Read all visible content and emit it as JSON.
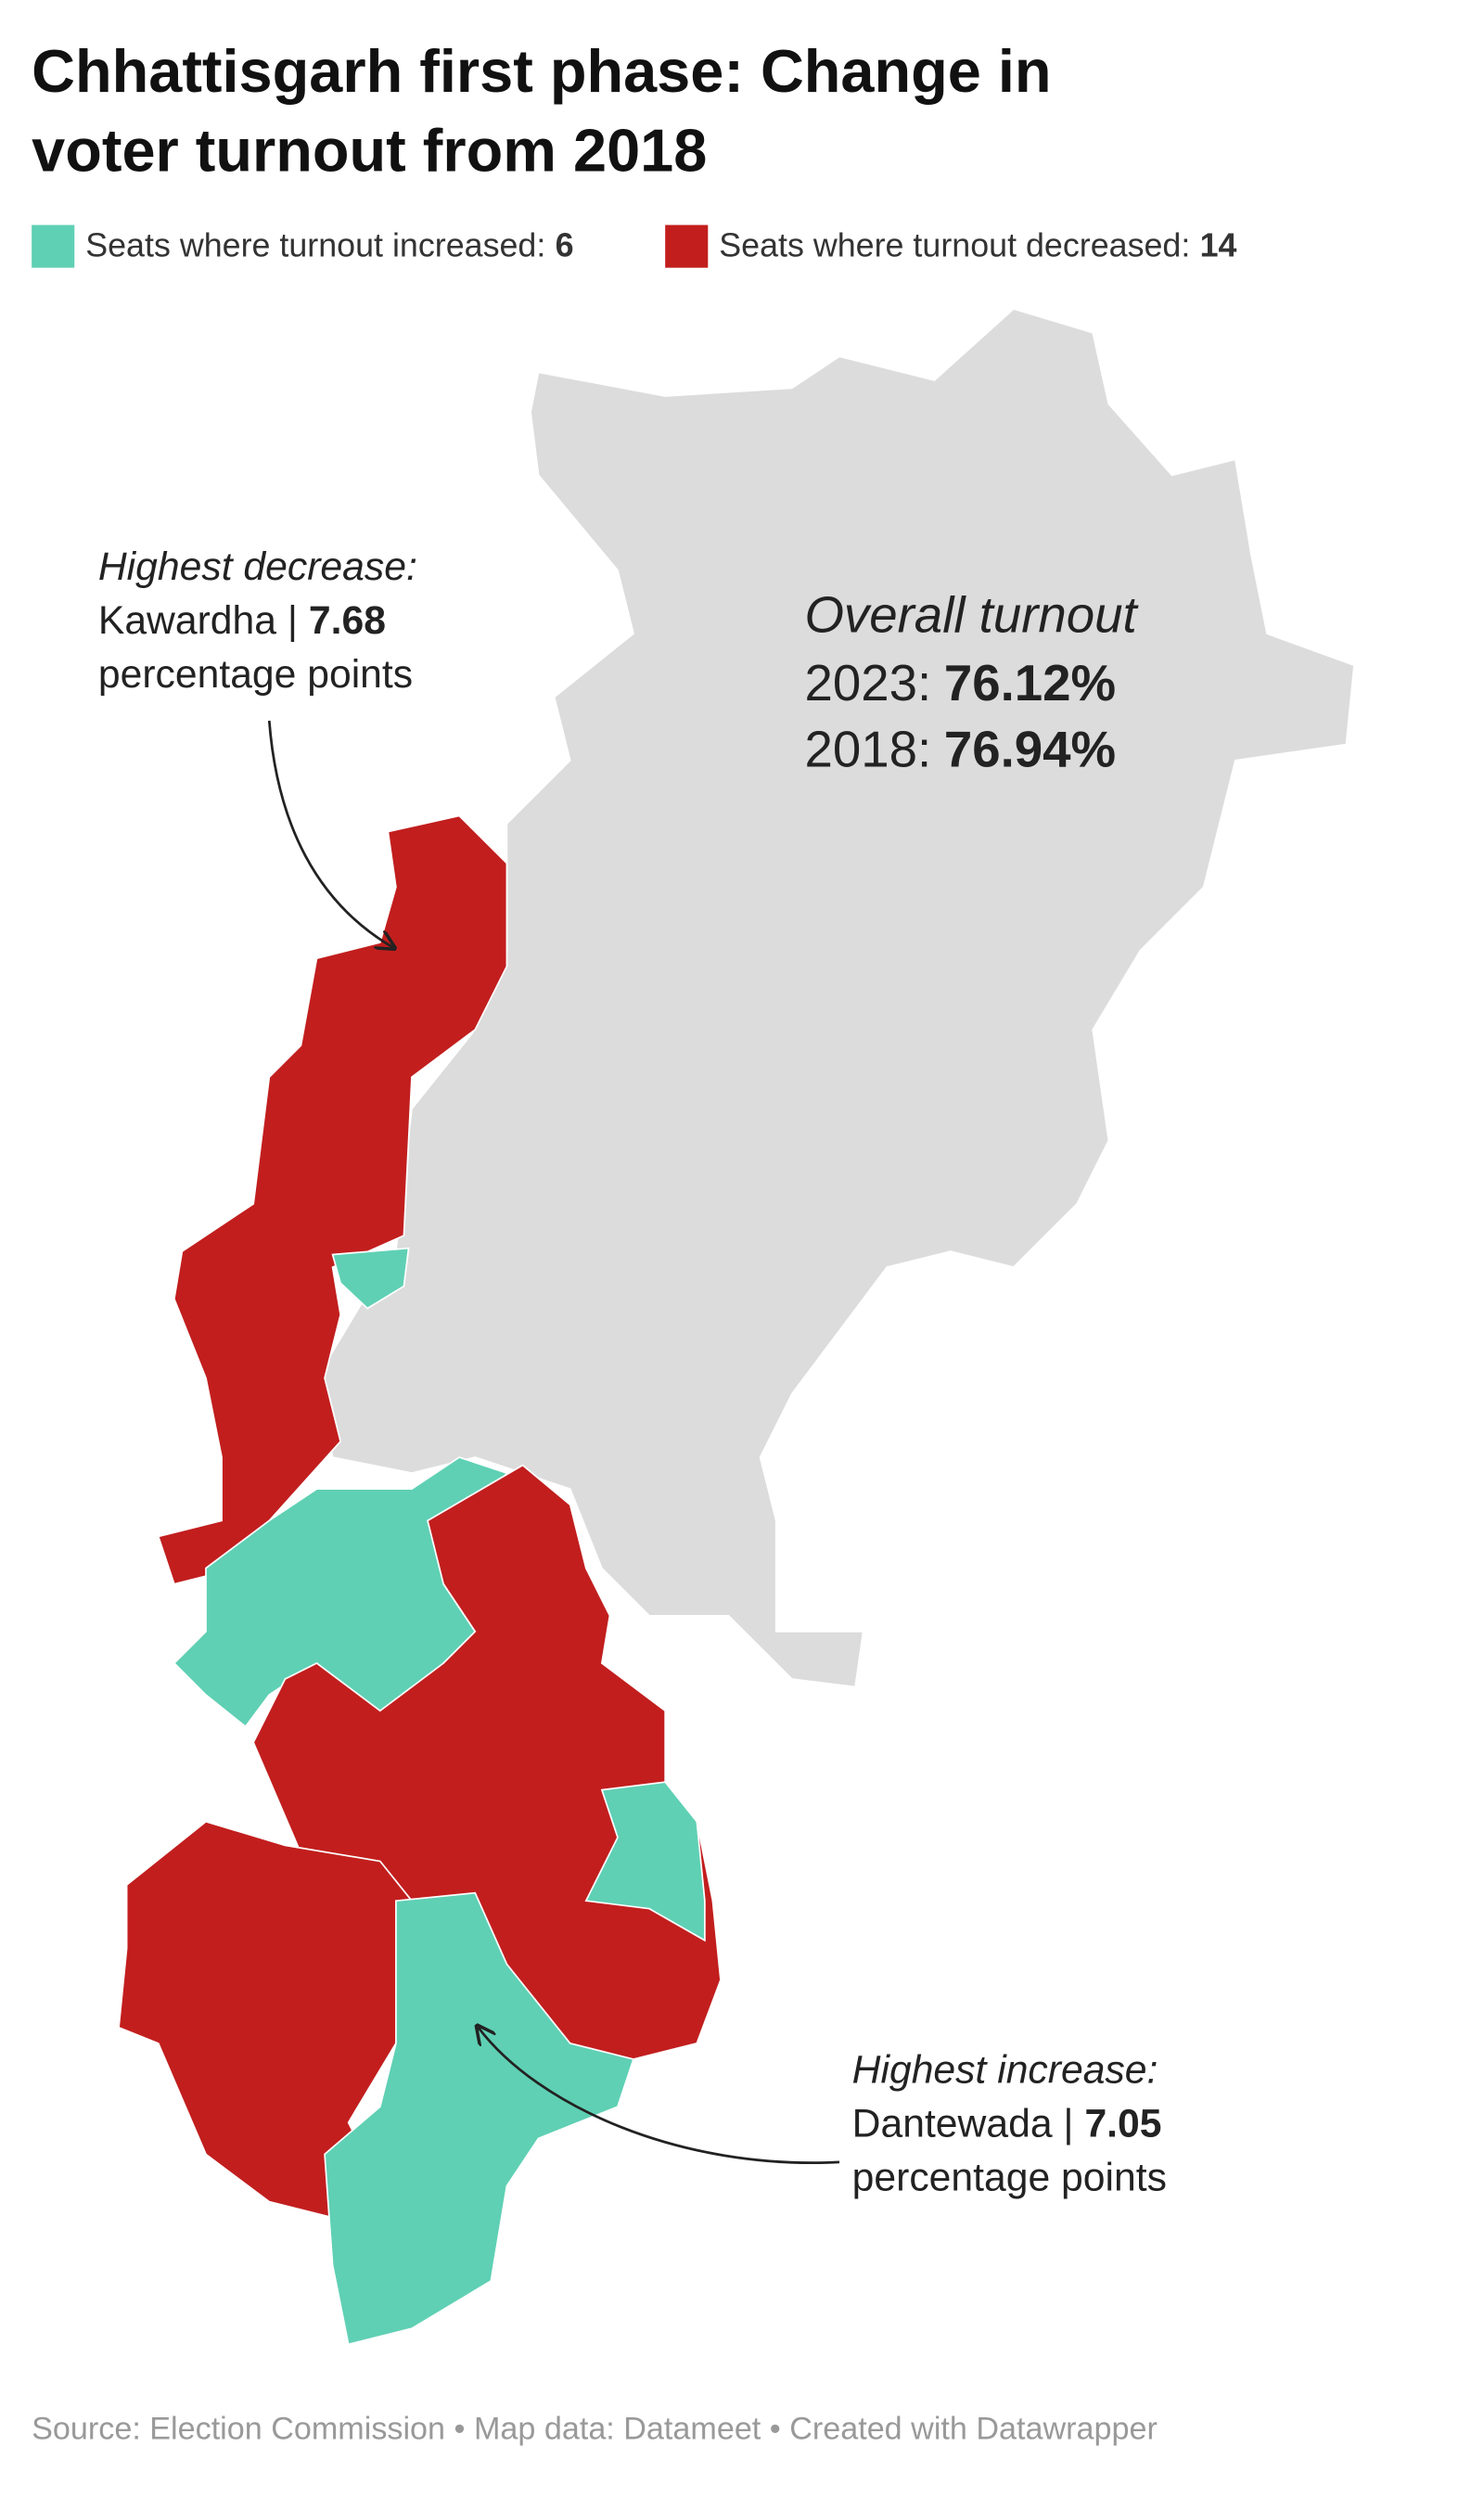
{
  "header": {
    "title": [
      "Chhattisgarh first phase: Change in",
      "voter turnout from 2018"
    ]
  },
  "legend": [
    {
      "label": "Seats where turnout increased:",
      "count": "6",
      "color": "#5fd0b4"
    },
    {
      "label": "Seats where turnout decreased:",
      "count": "14",
      "color": "#c21e1e"
    }
  ],
  "annotations": {
    "decrease": {
      "heading": "Highest decrease:",
      "seat": "Kawardha |",
      "value": "7.68",
      "unit": "percentage points"
    },
    "increase": {
      "heading": "Highest increase:",
      "seat": "Dantewada |",
      "value": "7.05",
      "unit": "percentage points"
    }
  },
  "overall": {
    "heading": "Overall turnout",
    "rows": [
      {
        "year": "2023:",
        "value": "76.12%"
      },
      {
        "year": "2018:",
        "value": "76.94%"
      }
    ]
  },
  "footer": {
    "source": "Source: Election Commission • Map data: Datameet • Created with Datawrapper"
  }
}
